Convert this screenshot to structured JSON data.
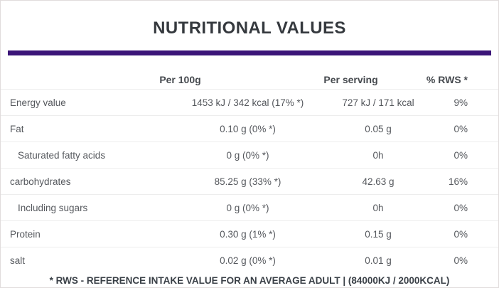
{
  "title": "NUTRITIONAL VALUES",
  "accent_color": "#3b1578",
  "table": {
    "columns": {
      "per100g": "Per 100g",
      "per_serving": "Per serving",
      "rws": "% RWS *"
    },
    "rows": [
      {
        "label": "Energy value",
        "per100g": "1453 kJ / 342 kcal (17% *)",
        "per_serving": "727 kJ / 171 kcal",
        "rws": "9%"
      },
      {
        "label": "Fat",
        "per100g": "0.10 g (0% *)",
        "per_serving": "0.05 g",
        "rws": "0%"
      },
      {
        "label": "Saturated fatty acids",
        "per100g": "0 g (0% *)",
        "per_serving": "0h",
        "rws": "0%"
      },
      {
        "label": "carbohydrates",
        "per100g": "85.25 g (33% *)",
        "per_serving": "42.63 g",
        "rws": "16%"
      },
      {
        "label": "Including sugars",
        "per100g": "0 g (0% *)",
        "per_serving": "0h",
        "rws": "0%"
      },
      {
        "label": "Protein",
        "per100g": "0.30 g (1% *)",
        "per_serving": "0.15 g",
        "rws": "0%"
      },
      {
        "label": "salt",
        "per100g": "0.02 g (0% *)",
        "per_serving": "0.01 g",
        "rws": "0%"
      }
    ],
    "footnote": "* RWS - REFERENCE INTAKE VALUE FOR AN AVERAGE ADULT | (84000KJ / 2000KCAL)"
  }
}
